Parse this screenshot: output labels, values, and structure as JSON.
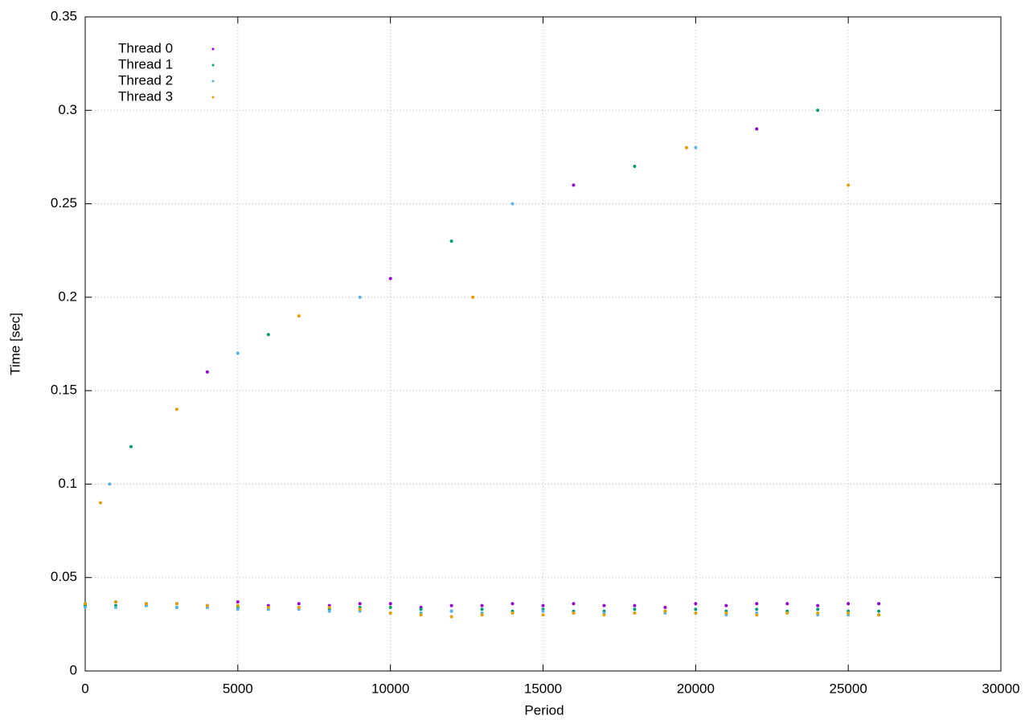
{
  "chart_data": {
    "type": "scatter",
    "x_label": "Period",
    "y_label": "Time [sec]",
    "xlim": [
      0,
      30000
    ],
    "ylim": [
      0,
      0.35
    ],
    "xticks": [
      0,
      5000,
      10000,
      15000,
      20000,
      25000,
      30000
    ],
    "yticks": [
      0,
      0.05,
      0.1,
      0.15,
      0.2,
      0.25,
      0.3,
      0.35
    ],
    "grid": true,
    "legend": "top-left",
    "series": [
      {
        "name": "Thread 0",
        "color": "#9400d3",
        "x": [
          0,
          1000,
          2000,
          3000,
          4000,
          5000,
          6000,
          7000,
          8000,
          9000,
          10000,
          11000,
          12000,
          13000,
          14000,
          15000,
          16000,
          17000,
          18000,
          19000,
          20000,
          21000,
          22000,
          23000,
          24000,
          25000,
          26000,
          4000,
          10000,
          16000,
          22000
        ],
        "values": [
          0.036,
          0.037,
          0.036,
          0.036,
          0.035,
          0.037,
          0.035,
          0.036,
          0.035,
          0.036,
          0.036,
          0.034,
          0.035,
          0.035,
          0.036,
          0.035,
          0.036,
          0.035,
          0.035,
          0.034,
          0.036,
          0.035,
          0.036,
          0.036,
          0.035,
          0.036,
          0.036,
          0.16,
          0.21,
          0.26,
          0.29
        ]
      },
      {
        "name": "Thread 1",
        "color": "#009e73",
        "x": [
          0,
          1000,
          2000,
          3000,
          4000,
          5000,
          6000,
          7000,
          8000,
          9000,
          10000,
          11000,
          12000,
          13000,
          14000,
          15000,
          16000,
          17000,
          18000,
          19000,
          20000,
          21000,
          22000,
          23000,
          24000,
          25000,
          26000,
          1500,
          6000,
          12000,
          18000,
          24000
        ],
        "values": [
          0.035,
          0.035,
          0.035,
          0.034,
          0.034,
          0.034,
          0.033,
          0.034,
          0.033,
          0.034,
          0.034,
          0.033,
          0.032,
          0.033,
          0.032,
          0.033,
          0.032,
          0.032,
          0.033,
          0.032,
          0.033,
          0.032,
          0.033,
          0.032,
          0.033,
          0.032,
          0.032,
          0.12,
          0.18,
          0.23,
          0.27,
          0.3
        ]
      },
      {
        "name": "Thread 2",
        "color": "#56b4e9",
        "x": [
          0,
          1000,
          2000,
          3000,
          4000,
          5000,
          6000,
          7000,
          8000,
          9000,
          10000,
          11000,
          12000,
          13000,
          14000,
          15000,
          16000,
          17000,
          18000,
          19000,
          20000,
          21000,
          22000,
          23000,
          24000,
          25000,
          26000,
          800,
          5000,
          9000,
          14000,
          20000
        ],
        "values": [
          0.034,
          0.034,
          0.035,
          0.034,
          0.034,
          0.033,
          0.033,
          0.033,
          0.032,
          0.032,
          0.031,
          0.031,
          0.032,
          0.031,
          0.031,
          0.032,
          0.031,
          0.031,
          0.031,
          0.031,
          0.031,
          0.03,
          0.031,
          0.031,
          0.03,
          0.03,
          0.03,
          0.1,
          0.17,
          0.2,
          0.25,
          0.28
        ]
      },
      {
        "name": "Thread 3",
        "color": "#e69f00",
        "x": [
          0,
          1000,
          2000,
          3000,
          4000,
          5000,
          6000,
          7000,
          8000,
          9000,
          10000,
          11000,
          12000,
          13000,
          14000,
          15000,
          16000,
          17000,
          18000,
          19000,
          20000,
          21000,
          22000,
          23000,
          24000,
          25000,
          26000,
          500,
          3000,
          7000,
          12700,
          19700,
          25000
        ],
        "values": [
          0.036,
          0.037,
          0.036,
          0.036,
          0.035,
          0.035,
          0.034,
          0.034,
          0.034,
          0.033,
          0.031,
          0.03,
          0.029,
          0.03,
          0.031,
          0.03,
          0.031,
          0.03,
          0.031,
          0.032,
          0.031,
          0.031,
          0.03,
          0.031,
          0.031,
          0.031,
          0.03,
          0.09,
          0.14,
          0.19,
          0.2,
          0.28,
          0.26
        ]
      }
    ]
  }
}
